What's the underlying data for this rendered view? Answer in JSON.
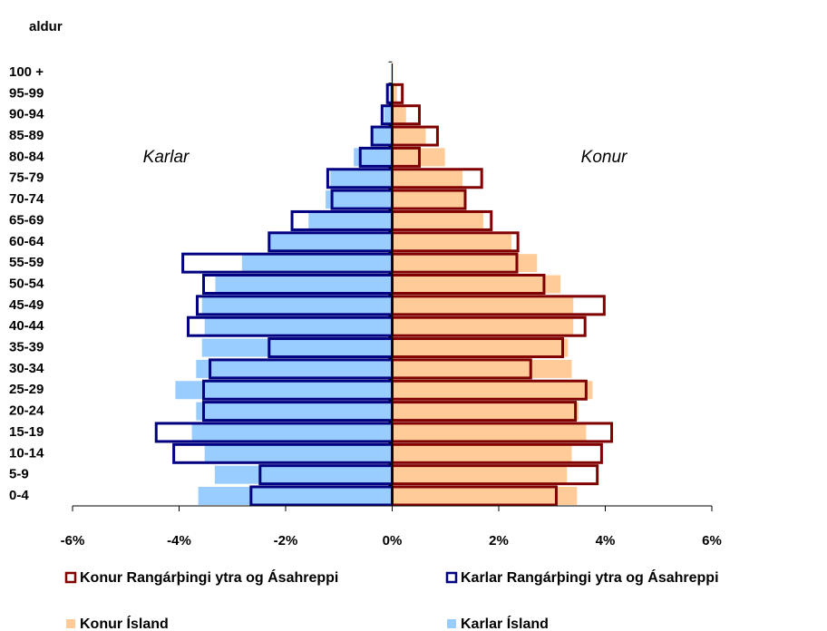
{
  "chart_data": {
    "type": "pyramid",
    "title": "aldur",
    "annotations": [
      "Karlar",
      "Konur"
    ],
    "categories": [
      "0-4",
      "5-9",
      "10-14",
      "15-19",
      "20-24",
      "25-29",
      "30-34",
      "35-39",
      "40-44",
      "45-49",
      "50-54",
      "55-59",
      "60-64",
      "65-69",
      "70-74",
      "75-79",
      "80-84",
      "85-89",
      "90-94",
      "95-99",
      "100 +"
    ],
    "series": [
      {
        "name": "Konur Rangárþingi ytra og Ásahreppi",
        "color": "#800000",
        "values": [
          3.08,
          3.85,
          3.93,
          4.12,
          3.44,
          3.64,
          2.6,
          3.2,
          3.62,
          3.98,
          2.85,
          2.34,
          2.36,
          1.86,
          1.37,
          1.68,
          0.51,
          0.85,
          0.51,
          0.19,
          0
        ]
      },
      {
        "name": "Karlar Rangárþingi ytra og Ásahreppi",
        "color": "#000080",
        "values": [
          -2.65,
          -2.48,
          -4.1,
          -4.43,
          -3.54,
          -3.54,
          -3.42,
          -2.31,
          -3.83,
          -3.66,
          -3.54,
          -3.93,
          -2.31,
          -1.88,
          -1.13,
          -1.21,
          -0.6,
          -0.38,
          -0.19,
          -0.09,
          0
        ]
      },
      {
        "name": "Konur Ísland",
        "color": "#ffcc99",
        "values": [
          3.47,
          3.28,
          3.37,
          3.64,
          3.5,
          3.76,
          3.37,
          3.3,
          3.4,
          3.4,
          3.16,
          2.72,
          2.24,
          1.71,
          1.38,
          1.32,
          0.99,
          0.63,
          0.26,
          0.09,
          0.02
        ]
      },
      {
        "name": "Karlar Ísland",
        "color": "#99ccff",
        "values": [
          -3.64,
          -3.33,
          -3.52,
          -3.76,
          -3.68,
          -4.07,
          -3.68,
          -3.57,
          -3.52,
          -3.57,
          -3.32,
          -2.82,
          -2.31,
          -1.57,
          -1.25,
          -1.16,
          -0.72,
          -0.38,
          -0.15,
          -0.05,
          -0.02
        ]
      }
    ],
    "xlim": [
      -6,
      6
    ],
    "xticks": [
      {
        "value": -6,
        "label": "-6%"
      },
      {
        "value": -4,
        "label": "-4%"
      },
      {
        "value": -2,
        "label": "-2%"
      },
      {
        "value": 0,
        "label": "0%"
      },
      {
        "value": 2,
        "label": "2%"
      },
      {
        "value": 4,
        "label": "4%"
      },
      {
        "value": 6,
        "label": "6%"
      }
    ],
    "legend": "bottom"
  }
}
